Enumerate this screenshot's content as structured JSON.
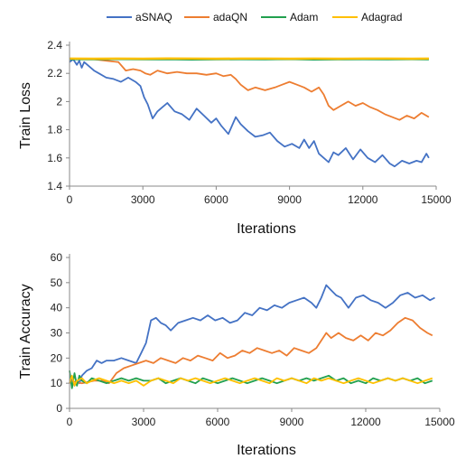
{
  "chart_data": [
    {
      "type": "line",
      "xlabel": "Iterations",
      "ylabel": "Train Loss",
      "xlim": [
        0,
        15000
      ],
      "ylim": [
        1.4,
        2.4
      ],
      "xticks": [
        0,
        3000,
        6000,
        9000,
        12000,
        15000
      ],
      "yticks": [
        1.4,
        1.6,
        1.8,
        2,
        2.2,
        2.4
      ],
      "grid": false,
      "legend": "top",
      "series": [
        {
          "name": "aSNAQ",
          "color": "#4472C4",
          "x": [
            0,
            150,
            300,
            400,
            500,
            600,
            800,
            1000,
            1200,
            1500,
            1800,
            2100,
            2400,
            2700,
            2900,
            3050,
            3200,
            3400,
            3600,
            3800,
            4000,
            4300,
            4600,
            4900,
            5200,
            5500,
            5800,
            6000,
            6200,
            6500,
            6800,
            7000,
            7300,
            7600,
            7900,
            8200,
            8500,
            8800,
            9100,
            9400,
            9600,
            9800,
            10000,
            10200,
            10400,
            10600,
            10800,
            11000,
            11300,
            11600,
            11900,
            12200,
            12500,
            12800,
            13100,
            13300,
            13600,
            13900,
            14200,
            14400,
            14600,
            14700
          ],
          "y": [
            2.28,
            2.3,
            2.26,
            2.29,
            2.24,
            2.28,
            2.25,
            2.22,
            2.2,
            2.17,
            2.16,
            2.14,
            2.17,
            2.14,
            2.11,
            2.03,
            1.98,
            1.88,
            1.93,
            1.96,
            1.99,
            1.93,
            1.91,
            1.87,
            1.95,
            1.9,
            1.85,
            1.88,
            1.83,
            1.77,
            1.89,
            1.84,
            1.79,
            1.75,
            1.76,
            1.78,
            1.72,
            1.68,
            1.7,
            1.67,
            1.73,
            1.67,
            1.72,
            1.63,
            1.6,
            1.57,
            1.64,
            1.62,
            1.67,
            1.59,
            1.66,
            1.6,
            1.57,
            1.62,
            1.56,
            1.54,
            1.58,
            1.56,
            1.58,
            1.57,
            1.63,
            1.6
          ]
        },
        {
          "name": "adaQN",
          "color": "#ED7D31",
          "x": [
            0,
            500,
            1000,
            1500,
            2000,
            2300,
            2600,
            2900,
            3100,
            3300,
            3600,
            4000,
            4400,
            4800,
            5200,
            5600,
            6000,
            6300,
            6600,
            6800,
            7000,
            7300,
            7600,
            8000,
            8400,
            8700,
            9000,
            9300,
            9600,
            9900,
            10200,
            10400,
            10600,
            10800,
            11100,
            11400,
            11700,
            12000,
            12300,
            12600,
            12900,
            13200,
            13500,
            13800,
            14100,
            14400,
            14700
          ],
          "y": [
            2.3,
            2.3,
            2.3,
            2.29,
            2.28,
            2.22,
            2.23,
            2.22,
            2.2,
            2.19,
            2.22,
            2.2,
            2.21,
            2.2,
            2.2,
            2.19,
            2.2,
            2.18,
            2.19,
            2.16,
            2.12,
            2.08,
            2.1,
            2.08,
            2.1,
            2.12,
            2.14,
            2.12,
            2.1,
            2.07,
            2.1,
            2.05,
            1.97,
            1.94,
            1.97,
            2.0,
            1.97,
            1.99,
            1.96,
            1.94,
            1.91,
            1.89,
            1.87,
            1.9,
            1.88,
            1.92,
            1.89
          ]
        },
        {
          "name": "Adam",
          "color": "#21A04E",
          "x": [
            0,
            1000,
            2000,
            3000,
            4000,
            5000,
            6000,
            7000,
            8000,
            9000,
            10000,
            11000,
            12000,
            13000,
            14000,
            14700
          ],
          "y": [
            2.301,
            2.3,
            2.302,
            2.3,
            2.301,
            2.299,
            2.3,
            2.301,
            2.3,
            2.302,
            2.299,
            2.3,
            2.301,
            2.3,
            2.301,
            2.3
          ]
        },
        {
          "name": "Adagrad",
          "color": "#FFC000",
          "x": [
            0,
            1000,
            2000,
            3000,
            4000,
            5000,
            6000,
            7000,
            8000,
            9000,
            10000,
            11000,
            12000,
            13000,
            14000,
            14700
          ],
          "y": [
            2.305,
            2.304,
            2.305,
            2.304,
            2.306,
            2.305,
            2.304,
            2.305,
            2.305,
            2.304,
            2.305,
            2.304,
            2.305,
            2.305,
            2.304,
            2.305
          ]
        }
      ]
    },
    {
      "type": "line",
      "xlabel": "Iterations",
      "ylabel": "Train Accuracy",
      "xlim": [
        0,
        15000
      ],
      "ylim": [
        0,
        60
      ],
      "xticks": [
        0,
        3000,
        6000,
        9000,
        12000,
        15000
      ],
      "yticks": [
        0,
        10,
        20,
        30,
        40,
        50,
        60
      ],
      "grid": false,
      "series": [
        {
          "name": "aSNAQ",
          "color": "#4472C4",
          "x": [
            0,
            100,
            200,
            300,
            400,
            500,
            700,
            900,
            1100,
            1300,
            1500,
            1800,
            2100,
            2400,
            2700,
            2900,
            3100,
            3300,
            3500,
            3700,
            3900,
            4100,
            4400,
            4700,
            5000,
            5300,
            5600,
            5900,
            6200,
            6500,
            6800,
            7100,
            7400,
            7700,
            8000,
            8300,
            8600,
            8900,
            9200,
            9500,
            9800,
            10000,
            10200,
            10400,
            10600,
            10800,
            11000,
            11300,
            11600,
            11900,
            12200,
            12500,
            12800,
            13100,
            13400,
            13700,
            14000,
            14300,
            14600,
            14800
          ],
          "y": [
            10,
            12,
            9,
            11,
            10,
            13,
            15,
            16,
            19,
            18,
            19,
            19,
            20,
            19,
            18,
            22,
            26,
            35,
            36,
            34,
            33,
            31,
            34,
            35,
            36,
            35,
            37,
            35,
            36,
            34,
            35,
            38,
            37,
            40,
            39,
            41,
            40,
            42,
            43,
            44,
            42,
            40,
            44,
            49,
            47,
            45,
            44,
            40,
            44,
            45,
            43,
            42,
            40,
            42,
            45,
            46,
            44,
            45,
            43,
            44
          ]
        },
        {
          "name": "adaQN",
          "color": "#ED7D31",
          "x": [
            0,
            500,
            1000,
            1300,
            1600,
            1900,
            2200,
            2500,
            2800,
            3100,
            3400,
            3700,
            4000,
            4300,
            4600,
            4900,
            5200,
            5500,
            5800,
            6100,
            6400,
            6700,
            7000,
            7300,
            7600,
            7900,
            8200,
            8500,
            8800,
            9100,
            9400,
            9700,
            10000,
            10200,
            10400,
            10600,
            10900,
            11200,
            11500,
            11800,
            12100,
            12400,
            12700,
            13000,
            13300,
            13600,
            13900,
            14200,
            14500,
            14700
          ],
          "y": [
            11,
            10,
            11,
            11,
            10,
            14,
            16,
            17,
            18,
            19,
            18,
            20,
            19,
            18,
            20,
            19,
            21,
            20,
            19,
            22,
            20,
            21,
            23,
            22,
            24,
            23,
            22,
            23,
            21,
            24,
            23,
            22,
            24,
            27,
            30,
            28,
            30,
            28,
            27,
            29,
            27,
            30,
            29,
            31,
            34,
            36,
            35,
            32,
            30,
            29
          ]
        },
        {
          "name": "Adam",
          "color": "#21A04E",
          "x": [
            0,
            100,
            200,
            300,
            400,
            500,
            700,
            900,
            1200,
            1500,
            1800,
            2100,
            2400,
            2700,
            3000,
            3300,
            3600,
            3900,
            4200,
            4500,
            4800,
            5100,
            5400,
            5700,
            6000,
            6300,
            6600,
            6900,
            7200,
            7500,
            7800,
            8100,
            8400,
            8700,
            9000,
            9300,
            9600,
            9900,
            10200,
            10500,
            10800,
            11100,
            11400,
            11700,
            12000,
            12300,
            12600,
            12900,
            13200,
            13500,
            13800,
            14100,
            14400,
            14700
          ],
          "y": [
            15,
            8,
            14,
            9,
            13,
            11,
            10,
            12,
            11,
            10,
            11,
            12,
            11,
            12,
            11,
            11,
            12,
            10,
            11,
            12,
            11,
            10,
            12,
            11,
            10,
            11,
            12,
            11,
            10,
            11,
            12,
            11,
            10,
            11,
            12,
            11,
            12,
            11,
            12,
            13,
            11,
            12,
            10,
            11,
            10,
            12,
            11,
            12,
            11,
            12,
            11,
            12,
            10,
            11
          ]
        },
        {
          "name": "Adagrad",
          "color": "#FFC000",
          "x": [
            0,
            100,
            200,
            300,
            500,
            700,
            900,
            1200,
            1500,
            1800,
            2100,
            2400,
            2700,
            3000,
            3300,
            3600,
            3900,
            4200,
            4500,
            4800,
            5100,
            5400,
            5700,
            6000,
            6300,
            6600,
            6900,
            7200,
            7500,
            7800,
            8100,
            8400,
            8700,
            9000,
            9300,
            9600,
            9900,
            10200,
            10500,
            10800,
            11100,
            11400,
            11700,
            12000,
            12300,
            12600,
            12900,
            13200,
            13500,
            13800,
            14100,
            14400,
            14700
          ],
          "y": [
            10,
            13,
            9,
            11,
            12,
            10,
            11,
            12,
            11,
            10,
            11,
            10,
            11,
            9,
            11,
            12,
            11,
            10,
            12,
            11,
            12,
            11,
            10,
            11,
            12,
            11,
            10,
            11,
            12,
            11,
            10,
            12,
            11,
            12,
            11,
            10,
            12,
            11,
            12,
            11,
            10,
            11,
            12,
            11,
            10,
            11,
            12,
            11,
            12,
            11,
            10,
            11,
            12
          ]
        }
      ]
    }
  ]
}
